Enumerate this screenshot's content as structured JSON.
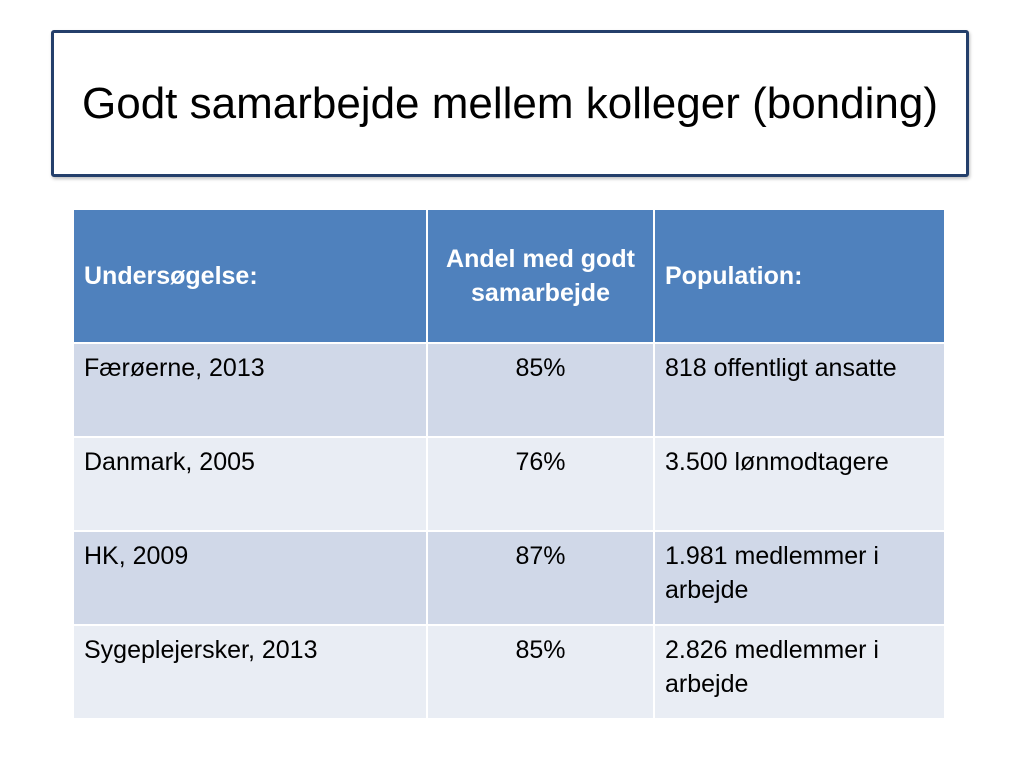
{
  "title": "Godt samarbejde mellem kolleger (bonding)",
  "table": {
    "headers": [
      "Undersøgelse:",
      "Andel med godt samarbejde",
      "Population:"
    ],
    "rows": [
      {
        "survey": "Færøerne, 2013",
        "share": "85%",
        "population": "818 offentligt ansatte"
      },
      {
        "survey": "Danmark, 2005",
        "share": "76%",
        "population": "3.500 lønmodtagere"
      },
      {
        "survey": "HK, 2009",
        "share": "87%",
        "population": "1.981 medlemmer i arbejde"
      },
      {
        "survey": "Sygeplejersker, 2013",
        "share": "85%",
        "population": "2.826 medlemmer i arbejde"
      }
    ]
  },
  "colors": {
    "header_bg": "#4f81bd",
    "row_odd_bg": "#d0d8e8",
    "row_even_bg": "#e9edf4",
    "title_border": "#243f6b"
  }
}
